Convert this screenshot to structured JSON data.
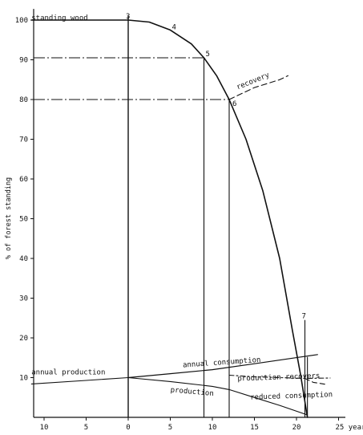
{
  "chart_data": {
    "type": "line",
    "ylabel": "% of forest standing",
    "xunit": "years",
    "xlim": [
      -12,
      26
    ],
    "ylim": [
      0,
      102
    ],
    "xticks": [
      -10,
      -5,
      0,
      5,
      10,
      15,
      20,
      25
    ],
    "xtick_labels": [
      "10",
      "5",
      "0",
      "5",
      "10",
      "15",
      "20",
      "25 years"
    ],
    "yticks": [
      10,
      20,
      30,
      40,
      50,
      60,
      70,
      80,
      90,
      100
    ],
    "ytick_labels": [
      "10",
      "20",
      "30",
      "40",
      "50",
      "60",
      "70",
      "80",
      "90",
      "100"
    ],
    "grid": false,
    "legend": "none",
    "series": [
      {
        "name": "standing wood",
        "points": [
          [
            -11.5,
            100
          ],
          [
            0,
            100
          ],
          [
            2.5,
            99.5
          ],
          [
            5,
            97.5
          ],
          [
            7.5,
            94
          ],
          [
            9,
            90.5
          ],
          [
            10.5,
            86
          ],
          [
            12,
            80
          ],
          [
            14,
            70
          ],
          [
            16,
            57
          ],
          [
            18,
            40
          ],
          [
            19.5,
            22
          ],
          [
            20.5,
            10.5
          ],
          [
            21.3,
            0
          ]
        ]
      },
      {
        "name": "annual consumption",
        "points": [
          [
            0,
            10
          ],
          [
            5,
            11
          ],
          [
            10,
            12
          ],
          [
            15,
            13.5
          ],
          [
            20.5,
            15.2
          ],
          [
            22.5,
            15.8
          ]
        ]
      },
      {
        "name": "annual production",
        "points": [
          [
            -11.5,
            8.4
          ],
          [
            -5,
            9.3
          ],
          [
            0,
            10
          ]
        ]
      },
      {
        "name": "production",
        "points": [
          [
            0,
            10
          ],
          [
            5,
            9
          ],
          [
            10,
            7.8
          ],
          [
            12,
            7
          ],
          [
            15,
            5
          ],
          [
            18,
            3
          ],
          [
            21.3,
            0.6
          ]
        ]
      },
      {
        "name": "recovery",
        "points": [
          [
            12,
            80
          ],
          [
            15,
            83
          ],
          [
            18,
            85
          ],
          [
            19,
            86
          ]
        ]
      },
      {
        "name": "production recovers",
        "points": [
          [
            12,
            10.6
          ],
          [
            15,
            10.2
          ],
          [
            18,
            10
          ],
          [
            21,
            9.8
          ],
          [
            24,
            9.9
          ]
        ]
      },
      {
        "name": "reduced consumption",
        "points": [
          [
            21,
            9.8
          ],
          [
            22,
            8.8
          ],
          [
            23.5,
            8.3
          ]
        ]
      }
    ],
    "verticals": [
      {
        "x": 0,
        "y_top": 101
      },
      {
        "x": 9,
        "y_top": 90.5
      },
      {
        "x": 12,
        "y_top": 80
      },
      {
        "x": 21.3,
        "y_top": 15.2
      },
      {
        "x": 21,
        "y_top": 24.5
      }
    ],
    "guides": [
      {
        "y": 90.5,
        "x_end": 9
      },
      {
        "y": 80,
        "x_end": 12
      }
    ],
    "point_labels": [
      {
        "text": "3",
        "x": 0,
        "y": 100
      },
      {
        "text": "4",
        "x": 5,
        "y": 97.5
      },
      {
        "text": "5",
        "x": 9,
        "y": 90.5
      },
      {
        "text": "6",
        "x": 12,
        "y": 80
      },
      {
        "text": "7",
        "x": 21,
        "y": 24.5
      }
    ],
    "annotations": [
      {
        "text": "standing wood",
        "x": -11.5,
        "y": 100
      },
      {
        "text": "annual production",
        "x": -11.5,
        "y": 10.8
      },
      {
        "text": "annual consumption",
        "x": 6.5,
        "y": 12.6
      },
      {
        "text": "production",
        "x": 5,
        "y": 6.4
      },
      {
        "text": "production recovers",
        "x": 13,
        "y": 9.2
      },
      {
        "text": "reduced consumption",
        "x": 14.5,
        "y": 4.5
      },
      {
        "text": "recovery",
        "x": 13,
        "y": 82.5
      }
    ]
  }
}
